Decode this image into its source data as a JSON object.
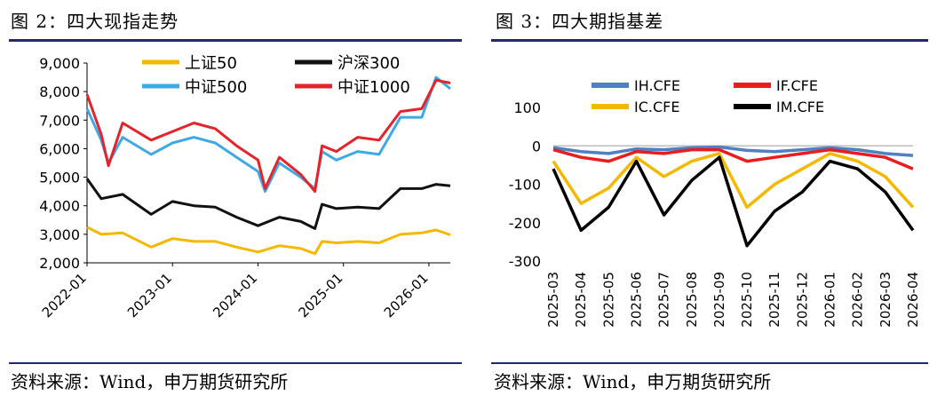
{
  "left": {
    "title": "图 2：四大现指走势",
    "source": "资料来源：Wind，申万期货研究所"
  },
  "right": {
    "title": "图 3：四大期指基差",
    "source": "资料来源：Wind，申万期货研究所"
  },
  "chart_data": [
    {
      "type": "line",
      "title": "四大现指走势",
      "xlabel": "",
      "ylabel": "",
      "x_range": [
        "2022-01",
        "2026-04"
      ],
      "x_ticks": [
        "2022-01",
        "2023-01",
        "2024-01",
        "2025-01",
        "2026-01"
      ],
      "ylim": [
        2000,
        9000
      ],
      "y_ticks": [
        "2,000",
        "3,000",
        "4,000",
        "5,000",
        "6,000",
        "7,000",
        "8,000",
        "9,000"
      ],
      "grid": false,
      "legend": "top",
      "series": [
        {
          "name": "上证50",
          "color": "#f5b800",
          "x": [
            "2022-01",
            "2022-03",
            "2022-06",
            "2022-10",
            "2023-01",
            "2023-04",
            "2023-07",
            "2023-10",
            "2024-01",
            "2024-04",
            "2024-07",
            "2024-09",
            "2024-10",
            "2024-12",
            "2025-03",
            "2025-06",
            "2025-09",
            "2025-12",
            "2026-02",
            "2026-04"
          ],
          "values": [
            3250,
            3000,
            3050,
            2550,
            2850,
            2750,
            2750,
            2550,
            2380,
            2600,
            2500,
            2320,
            2750,
            2700,
            2750,
            2700,
            3000,
            3050,
            3150,
            2980
          ]
        },
        {
          "name": "沪深300",
          "color": "#111111",
          "x": [
            "2022-01",
            "2022-03",
            "2022-06",
            "2022-10",
            "2023-01",
            "2023-04",
            "2023-07",
            "2023-10",
            "2024-01",
            "2024-04",
            "2024-07",
            "2024-09",
            "2024-10",
            "2024-12",
            "2025-03",
            "2025-06",
            "2025-09",
            "2025-12",
            "2026-02",
            "2026-04"
          ],
          "values": [
            4950,
            4250,
            4400,
            3700,
            4150,
            4000,
            3950,
            3600,
            3300,
            3600,
            3450,
            3200,
            4050,
            3900,
            3950,
            3900,
            4600,
            4600,
            4750,
            4700
          ]
        },
        {
          "name": "中证500",
          "color": "#3fa9e6",
          "x": [
            "2022-01",
            "2022-03",
            "2022-04",
            "2022-06",
            "2022-10",
            "2023-01",
            "2023-04",
            "2023-07",
            "2023-10",
            "2024-01",
            "2024-02",
            "2024-04",
            "2024-07",
            "2024-09",
            "2024-10",
            "2024-12",
            "2025-03",
            "2025-06",
            "2025-09",
            "2025-12",
            "2026-02",
            "2026-04"
          ],
          "values": [
            7400,
            6300,
            5500,
            6400,
            5800,
            6200,
            6400,
            6200,
            5700,
            5200,
            4500,
            5500,
            5000,
            4600,
            5900,
            5600,
            5900,
            5800,
            7100,
            7100,
            8500,
            8100
          ]
        },
        {
          "name": "中证1000",
          "color": "#e3242b",
          "x": [
            "2022-01",
            "2022-03",
            "2022-04",
            "2022-06",
            "2022-10",
            "2023-01",
            "2023-04",
            "2023-07",
            "2023-10",
            "2024-01",
            "2024-02",
            "2024-04",
            "2024-07",
            "2024-09",
            "2024-10",
            "2024-12",
            "2025-03",
            "2025-06",
            "2025-09",
            "2025-12",
            "2026-02",
            "2026-04"
          ],
          "values": [
            7900,
            6500,
            5400,
            6900,
            6300,
            6600,
            6900,
            6700,
            6100,
            5600,
            4600,
            5700,
            5100,
            4500,
            6100,
            5900,
            6400,
            6300,
            7300,
            7400,
            8400,
            8300
          ]
        }
      ]
    },
    {
      "type": "line",
      "title": "四大期指基差",
      "xlabel": "",
      "ylabel": "",
      "x_ticks": [
        "2025-03",
        "2025-04",
        "2025-05",
        "2025-06",
        "2025-07",
        "2025-08",
        "2025-09",
        "2025-10",
        "2025-11",
        "2025-12",
        "2026-01",
        "2026-02",
        "2026-03",
        "2026-04"
      ],
      "ylim": [
        -300,
        100
      ],
      "y_ticks": [
        "100",
        "0",
        "-100",
        "-200",
        "-300"
      ],
      "grid": false,
      "legend": "top",
      "series": [
        {
          "name": "IH.CFE",
          "color": "#4f7fc4",
          "x": [
            "2025-03",
            "2025-04",
            "2025-05",
            "2025-06",
            "2025-07",
            "2025-08",
            "2025-09",
            "2025-10",
            "2025-11",
            "2025-12",
            "2026-01",
            "2026-02",
            "2026-03",
            "2026-04"
          ],
          "values": [
            -5,
            -15,
            -20,
            -8,
            -10,
            -5,
            -3,
            -12,
            -15,
            -10,
            -5,
            -10,
            -20,
            -25
          ]
        },
        {
          "name": "IF.CFE",
          "color": "#e81e1e",
          "x": [
            "2025-03",
            "2025-04",
            "2025-05",
            "2025-06",
            "2025-07",
            "2025-08",
            "2025-09",
            "2025-10",
            "2025-11",
            "2025-12",
            "2026-01",
            "2026-02",
            "2026-03",
            "2026-04"
          ],
          "values": [
            -10,
            -30,
            -40,
            -15,
            -20,
            -10,
            -10,
            -40,
            -30,
            -20,
            -10,
            -20,
            -30,
            -60
          ]
        },
        {
          "name": "IC.CFE",
          "color": "#f5b800",
          "x": [
            "2025-03",
            "2025-04",
            "2025-05",
            "2025-06",
            "2025-07",
            "2025-08",
            "2025-09",
            "2025-10",
            "2025-11",
            "2025-12",
            "2026-01",
            "2026-02",
            "2026-03",
            "2026-04"
          ],
          "values": [
            -40,
            -150,
            -110,
            -30,
            -80,
            -40,
            -20,
            -160,
            -100,
            -60,
            -20,
            -40,
            -80,
            -160
          ]
        },
        {
          "name": "IM.CFE",
          "color": "#000000",
          "x": [
            "2025-03",
            "2025-04",
            "2025-05",
            "2025-06",
            "2025-07",
            "2025-08",
            "2025-09",
            "2025-10",
            "2025-11",
            "2025-12",
            "2026-01",
            "2026-02",
            "2026-03",
            "2026-04"
          ],
          "values": [
            -60,
            -220,
            -160,
            -40,
            -180,
            -90,
            -30,
            -260,
            -170,
            -120,
            -40,
            -60,
            -120,
            -220
          ]
        }
      ]
    }
  ]
}
